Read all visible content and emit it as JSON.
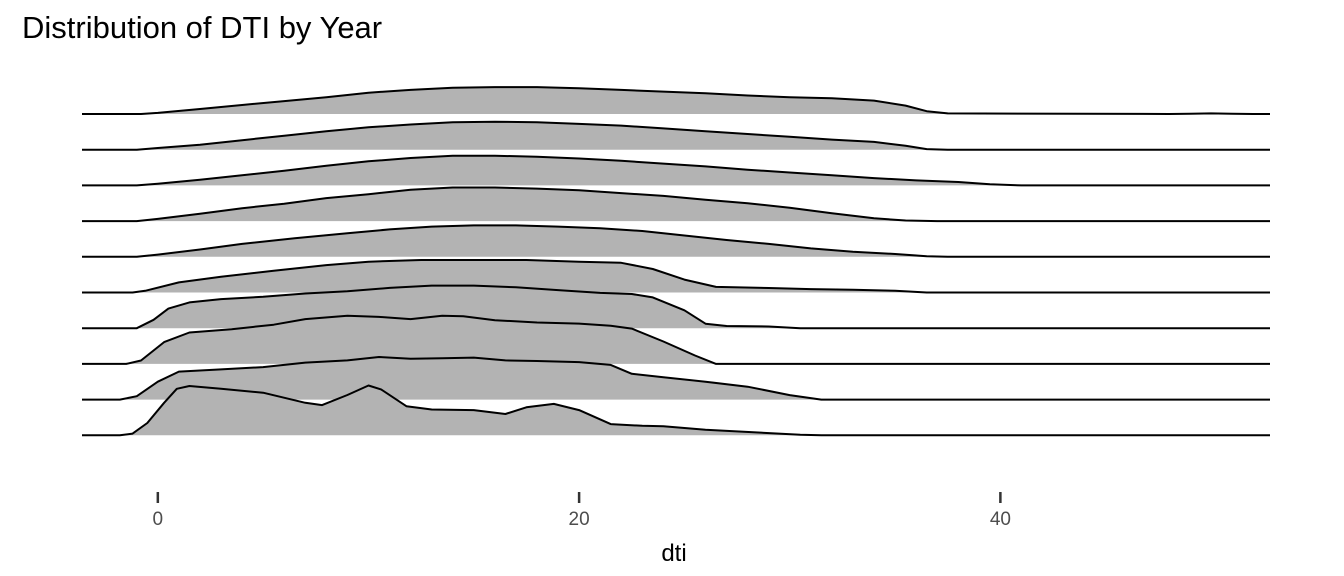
{
  "chart_data": {
    "type": "ridgeline",
    "title": "Distribution of DTI by Year",
    "xlabel": "dti",
    "ylabel": "",
    "xlim": [
      -3.6,
      52.8
    ],
    "x_ticks": [
      0,
      20,
      40
    ],
    "x_tick_labels": [
      "0",
      "20",
      "40"
    ],
    "grid": false,
    "fill_color": "#b3b3b3",
    "line_color": "#000000",
    "ridges": [
      {
        "points": [
          [
            -1.8,
            0
          ],
          [
            -1.2,
            0.3
          ],
          [
            -0.5,
            2.2
          ],
          [
            0.3,
            5.8
          ],
          [
            0.9,
            8.3
          ],
          [
            1.5,
            8.8
          ],
          [
            3.0,
            8.3
          ],
          [
            5.0,
            7.6
          ],
          [
            7.0,
            5.8
          ],
          [
            7.8,
            5.4
          ],
          [
            9.0,
            7.2
          ],
          [
            10.0,
            8.9
          ],
          [
            10.6,
            8.2
          ],
          [
            11.8,
            5.2
          ],
          [
            13.0,
            4.6
          ],
          [
            15.0,
            4.5
          ],
          [
            16.5,
            3.8
          ],
          [
            17.5,
            5.0
          ],
          [
            18.8,
            5.6
          ],
          [
            20.0,
            4.5
          ],
          [
            21.5,
            2.0
          ],
          [
            23.0,
            1.7
          ],
          [
            24.0,
            1.6
          ],
          [
            26.0,
            1.0
          ],
          [
            28.5,
            0.5
          ],
          [
            30.5,
            0.1
          ],
          [
            31.5,
            0
          ]
        ]
      },
      {
        "points": [
          [
            -1.8,
            0
          ],
          [
            -1.0,
            0.6
          ],
          [
            0,
            3.2
          ],
          [
            1.0,
            5.0
          ],
          [
            3.0,
            5.4
          ],
          [
            5.0,
            5.8
          ],
          [
            7.0,
            6.6
          ],
          [
            9.0,
            7.0
          ],
          [
            10.5,
            7.6
          ],
          [
            12.0,
            7.3
          ],
          [
            13.5,
            7.4
          ],
          [
            15.0,
            7.5
          ],
          [
            16.5,
            7.0
          ],
          [
            18.0,
            6.9
          ],
          [
            20.0,
            6.7
          ],
          [
            21.5,
            6.2
          ],
          [
            22.5,
            4.6
          ],
          [
            24.0,
            4.0
          ],
          [
            26.0,
            3.2
          ],
          [
            28.0,
            2.3
          ],
          [
            30.0,
            0.8
          ],
          [
            31.5,
            0
          ]
        ]
      },
      {
        "points": [
          [
            -1.5,
            0
          ],
          [
            -0.8,
            0.6
          ],
          [
            0.3,
            3.9
          ],
          [
            1.5,
            5.6
          ],
          [
            3.5,
            6.2
          ],
          [
            5.5,
            7.0
          ],
          [
            7.0,
            8.0
          ],
          [
            9.0,
            8.6
          ],
          [
            10.5,
            8.4
          ],
          [
            12.0,
            8.0
          ],
          [
            13.5,
            8.6
          ],
          [
            14.5,
            8.5
          ],
          [
            16.0,
            7.8
          ],
          [
            18.0,
            7.4
          ],
          [
            20.0,
            7.2
          ],
          [
            21.5,
            6.8
          ],
          [
            22.5,
            6.3
          ],
          [
            24.0,
            4.0
          ],
          [
            25.5,
            1.5
          ],
          [
            26.5,
            0
          ]
        ]
      },
      {
        "points": [
          [
            -1.0,
            0
          ],
          [
            -0.2,
            1.5
          ],
          [
            0.5,
            3.5
          ],
          [
            1.5,
            4.6
          ],
          [
            3.0,
            5.2
          ],
          [
            5.0,
            5.6
          ],
          [
            7.0,
            6.2
          ],
          [
            9.0,
            6.6
          ],
          [
            11.0,
            7.2
          ],
          [
            13.0,
            7.6
          ],
          [
            15.0,
            7.6
          ],
          [
            17.0,
            7.3
          ],
          [
            19.0,
            6.8
          ],
          [
            21.0,
            6.3
          ],
          [
            22.5,
            6.1
          ],
          [
            23.5,
            5.5
          ],
          [
            25.0,
            3.2
          ],
          [
            26.0,
            0.8
          ],
          [
            27.0,
            0.4
          ],
          [
            29.0,
            0.3
          ],
          [
            30.5,
            0
          ]
        ]
      },
      {
        "points": [
          [
            -1.2,
            0
          ],
          [
            -0.6,
            0.3
          ],
          [
            1.0,
            1.8
          ],
          [
            3.0,
            2.8
          ],
          [
            5.5,
            3.9
          ],
          [
            8.0,
            4.9
          ],
          [
            10.0,
            5.5
          ],
          [
            12.5,
            5.8
          ],
          [
            15.0,
            5.8
          ],
          [
            17.5,
            5.8
          ],
          [
            20.0,
            5.5
          ],
          [
            22.0,
            5.3
          ],
          [
            23.5,
            4.2
          ],
          [
            25.0,
            2.3
          ],
          [
            26.5,
            1.0
          ],
          [
            29.0,
            0.8
          ],
          [
            31.0,
            0.6
          ],
          [
            33.0,
            0.5
          ],
          [
            35.0,
            0.3
          ],
          [
            36.5,
            0
          ]
        ]
      },
      {
        "points": [
          [
            -1.0,
            0
          ],
          [
            0,
            0.4
          ],
          [
            2.0,
            1.3
          ],
          [
            4.0,
            2.3
          ],
          [
            6.5,
            3.3
          ],
          [
            9.0,
            4.2
          ],
          [
            11.0,
            4.9
          ],
          [
            13.0,
            5.4
          ],
          [
            15.0,
            5.6
          ],
          [
            17.0,
            5.6
          ],
          [
            19.0,
            5.4
          ],
          [
            21.0,
            5.1
          ],
          [
            23.0,
            4.6
          ],
          [
            25.0,
            3.8
          ],
          [
            27.0,
            3.0
          ],
          [
            29.0,
            2.3
          ],
          [
            31.0,
            1.5
          ],
          [
            33.0,
            0.9
          ],
          [
            35.0,
            0.5
          ],
          [
            36.5,
            0.1
          ],
          [
            37.5,
            0
          ]
        ]
      },
      {
        "points": [
          [
            -1.0,
            0
          ],
          [
            0,
            0.4
          ],
          [
            2.0,
            1.3
          ],
          [
            4.0,
            2.3
          ],
          [
            6.0,
            3.1
          ],
          [
            8.0,
            4.1
          ],
          [
            10.0,
            4.8
          ],
          [
            12.0,
            5.6
          ],
          [
            14.0,
            6.0
          ],
          [
            16.0,
            6.0
          ],
          [
            18.0,
            5.8
          ],
          [
            20.0,
            5.5
          ],
          [
            22.0,
            5.0
          ],
          [
            24.0,
            4.5
          ],
          [
            26.0,
            3.8
          ],
          [
            28.0,
            3.2
          ],
          [
            30.0,
            2.4
          ],
          [
            32.0,
            1.4
          ],
          [
            34.0,
            0.5
          ],
          [
            35.5,
            0.1
          ],
          [
            37.0,
            0
          ]
        ]
      },
      {
        "points": [
          [
            -1.0,
            0
          ],
          [
            0,
            0.3
          ],
          [
            2.0,
            1.0
          ],
          [
            4.0,
            1.8
          ],
          [
            6.0,
            2.6
          ],
          [
            8.0,
            3.5
          ],
          [
            10.0,
            4.3
          ],
          [
            12.0,
            4.9
          ],
          [
            14.0,
            5.3
          ],
          [
            16.0,
            5.3
          ],
          [
            18.0,
            5.1
          ],
          [
            20.0,
            4.8
          ],
          [
            22.0,
            4.4
          ],
          [
            24.0,
            3.9
          ],
          [
            26.0,
            3.4
          ],
          [
            28.0,
            2.8
          ],
          [
            30.0,
            2.3
          ],
          [
            32.0,
            1.8
          ],
          [
            34.0,
            1.3
          ],
          [
            36.0,
            0.9
          ],
          [
            38.0,
            0.6
          ],
          [
            39.5,
            0.2
          ],
          [
            41.0,
            0
          ]
        ]
      },
      {
        "points": [
          [
            -1.0,
            0
          ],
          [
            0,
            0.3
          ],
          [
            2.0,
            0.9
          ],
          [
            4.0,
            1.7
          ],
          [
            6.0,
            2.5
          ],
          [
            8.0,
            3.3
          ],
          [
            10.0,
            4.0
          ],
          [
            12.0,
            4.5
          ],
          [
            14.0,
            4.9
          ],
          [
            16.0,
            5.0
          ],
          [
            18.0,
            4.9
          ],
          [
            20.0,
            4.6
          ],
          [
            22.0,
            4.3
          ],
          [
            24.0,
            3.8
          ],
          [
            26.0,
            3.3
          ],
          [
            28.0,
            2.8
          ],
          [
            30.0,
            2.3
          ],
          [
            32.0,
            1.8
          ],
          [
            34.0,
            1.4
          ],
          [
            35.5,
            0.7
          ],
          [
            36.5,
            0.1
          ],
          [
            37.5,
            0
          ]
        ]
      },
      {
        "points": [
          [
            -0.8,
            0
          ],
          [
            0,
            0.2
          ],
          [
            2.0,
            0.9
          ],
          [
            4.0,
            1.6
          ],
          [
            6.0,
            2.3
          ],
          [
            8.0,
            3.0
          ],
          [
            10.0,
            3.8
          ],
          [
            12.0,
            4.3
          ],
          [
            14.0,
            4.7
          ],
          [
            16.0,
            4.8
          ],
          [
            18.0,
            4.8
          ],
          [
            20.0,
            4.6
          ],
          [
            22.0,
            4.3
          ],
          [
            24.0,
            4.0
          ],
          [
            26.0,
            3.7
          ],
          [
            28.0,
            3.3
          ],
          [
            30.0,
            3.0
          ],
          [
            32.0,
            2.8
          ],
          [
            34.0,
            2.4
          ],
          [
            35.5,
            1.5
          ],
          [
            36.5,
            0.5
          ],
          [
            37.5,
            0.1
          ],
          [
            48.0,
            0
          ],
          [
            49.0,
            0.05
          ],
          [
            50.0,
            0.1
          ],
          [
            51.0,
            0.04
          ],
          [
            52.0,
            0
          ]
        ]
      }
    ]
  }
}
